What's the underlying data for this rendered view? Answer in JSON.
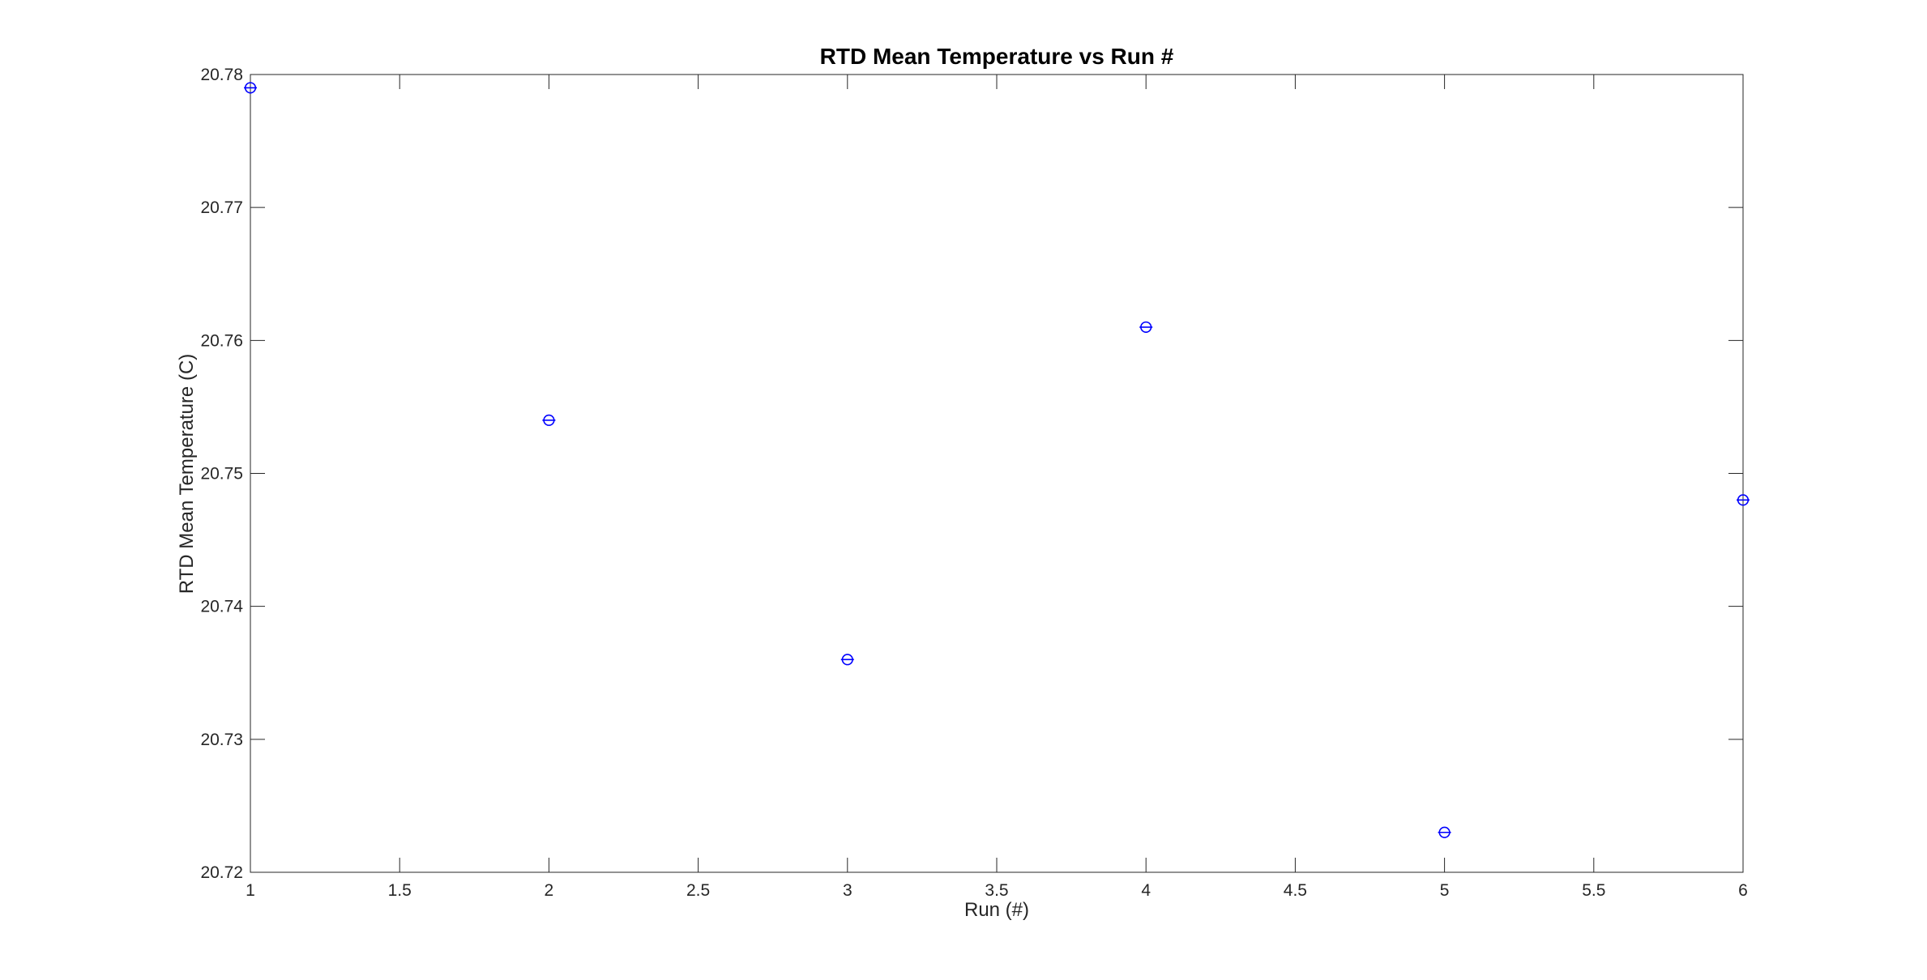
{
  "figure": {
    "background_color": "#FFFFFF",
    "axis_color": "#262626",
    "title_color": "#000000",
    "marker_color": "#0000FF"
  },
  "chart_data": {
    "type": "scatter",
    "title": "RTD Mean Temperature vs Run #",
    "xlabel": "Run (#)",
    "ylabel": "RTD Mean Temperature (C)",
    "x": [
      1,
      2,
      3,
      4,
      5,
      6
    ],
    "y": [
      20.779,
      20.754,
      20.736,
      20.761,
      20.723,
      20.748
    ],
    "xlim": [
      1,
      6
    ],
    "ylim": [
      20.72,
      20.78
    ],
    "xticks": [
      1,
      1.5,
      2,
      2.5,
      3,
      3.5,
      4,
      4.5,
      5,
      5.5,
      6
    ],
    "xtick_labels": [
      "1",
      "1.5",
      "2",
      "2.5",
      "3",
      "3.5",
      "4",
      "4.5",
      "5",
      "5.5",
      "6"
    ],
    "yticks": [
      20.72,
      20.73,
      20.74,
      20.75,
      20.76,
      20.77,
      20.78
    ],
    "ytick_labels": [
      "20.72",
      "20.73",
      "20.74",
      "20.75",
      "20.76",
      "20.77",
      "20.78"
    ],
    "grid": false,
    "legend": null,
    "marker": "open-circle-with-horizontal-errorbar-cap",
    "box": true,
    "tick_direction": "in"
  }
}
